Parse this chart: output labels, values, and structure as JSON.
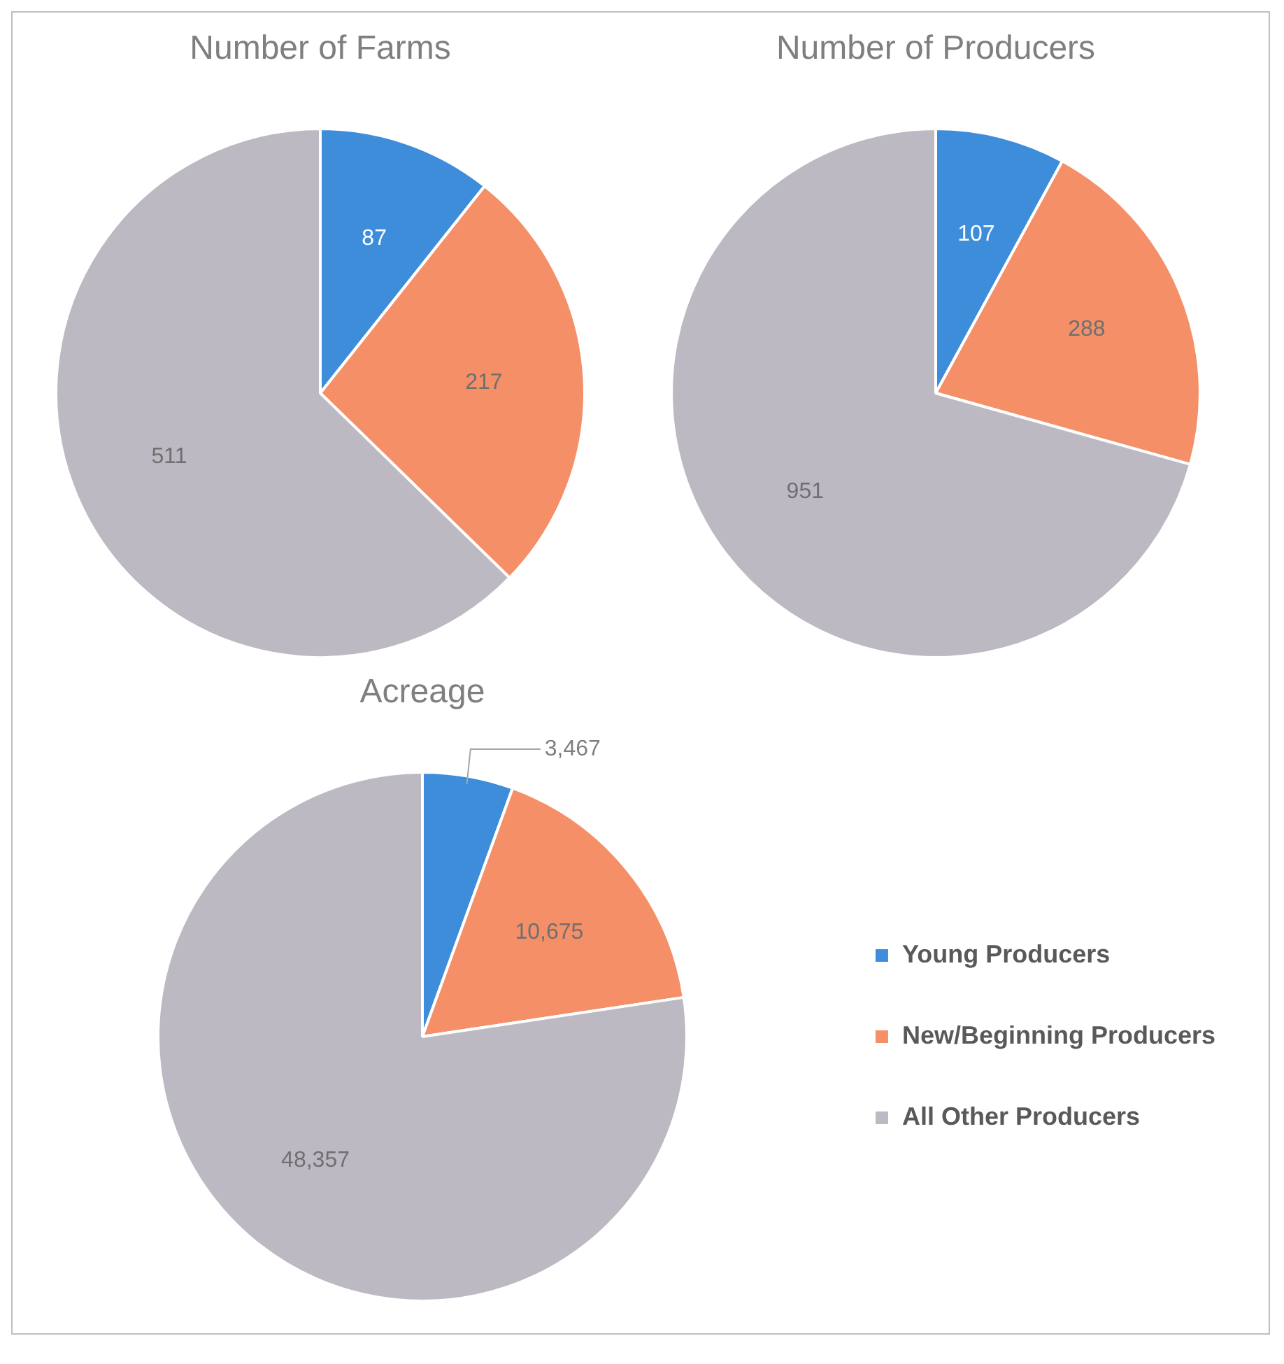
{
  "chart_data": [
    {
      "type": "pie",
      "title": "Number of Farms",
      "values": [
        87,
        217,
        511
      ],
      "colors": [
        "#3d8ddb",
        "#f58f68",
        "#bdb9c3"
      ],
      "data_labels": true,
      "legend": false
    },
    {
      "type": "pie",
      "title": "Number of Producers",
      "values": [
        107,
        288,
        951
      ],
      "colors": [
        "#3d8ddb",
        "#f58f68",
        "#bdb9c3"
      ],
      "data_labels": true,
      "legend": false
    },
    {
      "type": "pie",
      "title": "Acreage",
      "categories": [
        "Young Producers",
        "New/Beginning Producers",
        "All Other Producers"
      ],
      "values": [
        3467,
        10675,
        48357
      ],
      "colors": [
        "#3d8ddb",
        "#f58f68",
        "#bdb9c3"
      ],
      "value_labels": [
        "3,467",
        "10,675",
        "48,357"
      ],
      "legend": "right"
    }
  ]
}
